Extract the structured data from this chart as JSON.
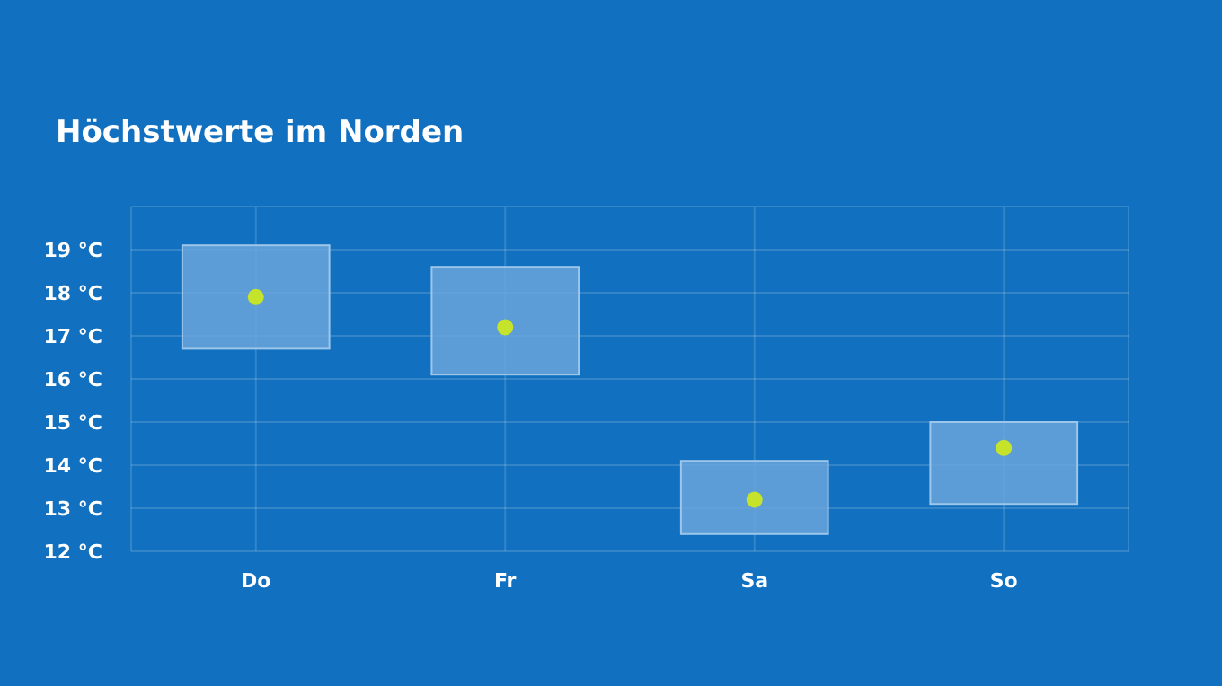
{
  "chart_data": {
    "type": "bar",
    "title": "Höchstwerte im Norden",
    "categories": [
      "Do",
      "Fr",
      "Sa",
      "So"
    ],
    "series": [
      {
        "type": "bar",
        "color": "#6aa5da",
        "values": [
          2.4,
          2.5,
          1.7,
          1.9
        ],
        "base": [
          16.7,
          16.1,
          12.4,
          13.1
        ]
      },
      {
        "type": "scatter",
        "color": "#c6e32c",
        "x": [
          "Do",
          "Fr",
          "Sa",
          "So"
        ],
        "values": [
          17.9,
          17.2,
          13.2,
          14.4
        ]
      }
    ],
    "ylim": [
      12,
      20
    ],
    "yticks": [
      {
        "value": 12,
        "label": "12 °C"
      },
      {
        "value": 13,
        "label": "13 °C"
      },
      {
        "value": 14,
        "label": "14 °C"
      },
      {
        "value": 15,
        "label": "15 °C"
      },
      {
        "value": 16,
        "label": "16 °C"
      },
      {
        "value": 17,
        "label": "17 °C"
      },
      {
        "value": 18,
        "label": "18 °C"
      },
      {
        "value": 19,
        "label": "19 °C"
      },
      {
        "value": 20,
        "label": null
      }
    ],
    "grid": true,
    "marker": "circle"
  }
}
